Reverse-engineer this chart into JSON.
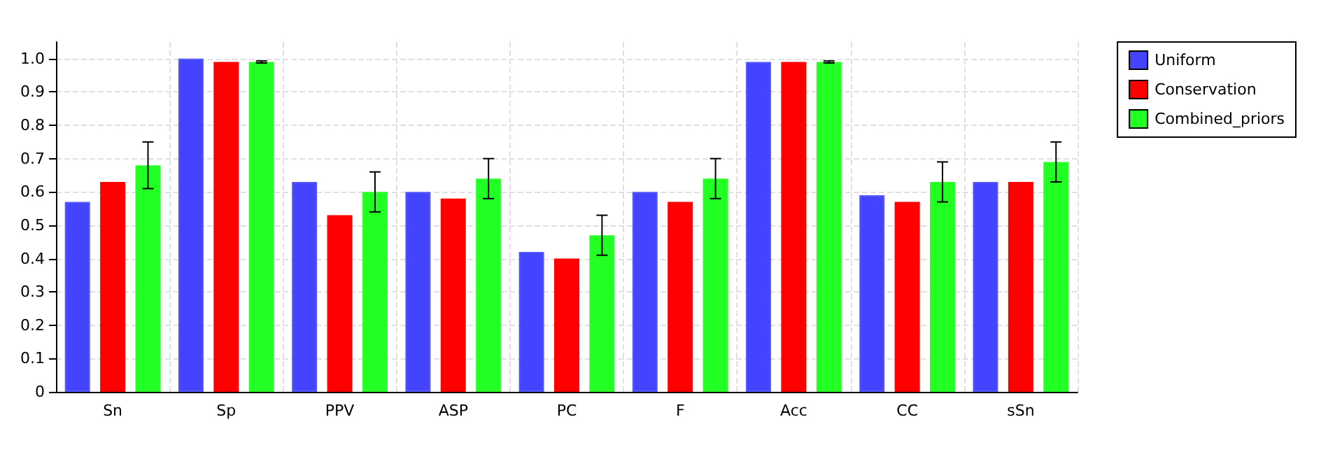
{
  "chart_data": {
    "type": "bar",
    "categories": [
      "Sn",
      "Sp",
      "PPV",
      "ASP",
      "PC",
      "F",
      "Acc",
      "CC",
      "sSn"
    ],
    "series": [
      {
        "name": "Uniform",
        "color": "#4444ff",
        "values": [
          0.57,
          1.0,
          0.63,
          0.6,
          0.42,
          0.6,
          0.99,
          0.59,
          0.63
        ]
      },
      {
        "name": "Conservation",
        "color": "#ff0000",
        "values": [
          0.63,
          0.99,
          0.53,
          0.58,
          0.4,
          0.57,
          0.99,
          0.57,
          0.63
        ]
      },
      {
        "name": "Combined_priors",
        "color": "#22ff22",
        "values": [
          0.68,
          0.99,
          0.6,
          0.64,
          0.47,
          0.64,
          0.99,
          0.63,
          0.69
        ],
        "errors": [
          0.07,
          0.003,
          0.06,
          0.06,
          0.06,
          0.06,
          0.003,
          0.06,
          0.06
        ]
      }
    ],
    "ylim": [
      0,
      1.05
    ],
    "yticks": [
      0,
      0.1,
      0.2,
      0.3,
      0.4,
      0.5,
      0.6,
      0.7,
      0.8,
      0.9,
      {
        "value": 1,
        "label": "1.0"
      }
    ],
    "grid": true,
    "legend": "top right"
  }
}
